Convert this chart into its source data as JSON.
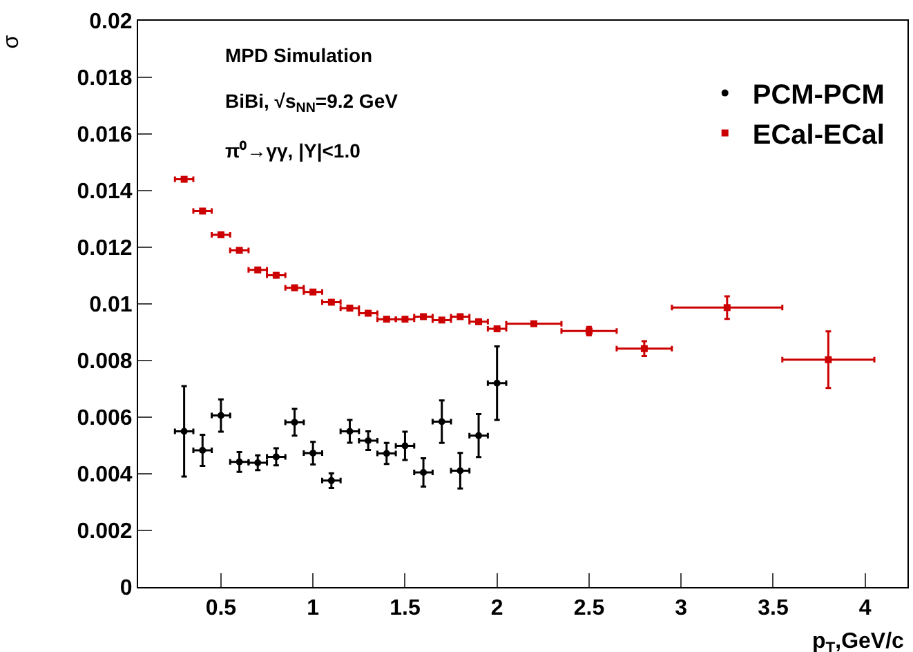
{
  "chart_data": {
    "type": "scatter",
    "xlabel": "p$_{T}$,GeV/c",
    "ylabel": "σ",
    "annotations": [
      "MPD Simulation",
      "BiBi, √s$_{NN}$=9.2 GeV",
      "π⁰→γγ, |Y|<1.0"
    ],
    "xlim": [
      0.05,
      4.23
    ],
    "xticks": [
      0.5,
      1,
      1.5,
      2,
      2.5,
      3,
      3.5,
      4
    ],
    "ylim": [
      0,
      0.02
    ],
    "yticks": [
      0,
      0.002,
      0.004,
      0.006,
      0.008,
      0.01,
      0.012,
      0.014,
      0.016,
      0.018,
      0.02
    ],
    "legend": "top right",
    "series": [
      {
        "name": "PCM-PCM",
        "color": "#000000",
        "marker": "circle",
        "x": [
          0.3,
          0.4,
          0.5,
          0.6,
          0.7,
          0.8,
          0.9,
          1.0,
          1.1,
          1.2,
          1.3,
          1.4,
          1.5,
          1.6,
          1.7,
          1.8,
          1.9,
          2.0
        ],
        "values": [
          0.0055,
          0.00483,
          0.00606,
          0.00442,
          0.00439,
          0.0046,
          0.00582,
          0.00473,
          0.00376,
          0.0055,
          0.00517,
          0.00472,
          0.00499,
          0.00405,
          0.00584,
          0.00411,
          0.00535,
          0.0072
        ],
        "errors": [
          0.0016,
          0.00055,
          0.00057,
          0.00035,
          0.00026,
          0.0003,
          0.00047,
          0.0004,
          0.00026,
          0.0004,
          0.00033,
          0.00037,
          0.0005,
          0.0005,
          0.00075,
          0.00063,
          0.00076,
          0.0013
        ],
        "xerrors": [
          0.05,
          0.05,
          0.05,
          0.05,
          0.05,
          0.05,
          0.05,
          0.05,
          0.05,
          0.05,
          0.05,
          0.05,
          0.05,
          0.05,
          0.05,
          0.05,
          0.05,
          0.05
        ]
      },
      {
        "name": "ECal-ECal",
        "color": "#cc0000",
        "marker": "square",
        "x": [
          0.3,
          0.4,
          0.5,
          0.6,
          0.7,
          0.8,
          0.9,
          1.0,
          1.1,
          1.2,
          1.3,
          1.4,
          1.5,
          1.6,
          1.7,
          1.8,
          1.9,
          2.0,
          2.2,
          2.5,
          2.8,
          3.25,
          3.8
        ],
        "values": [
          0.0144,
          0.01328,
          0.01244,
          0.01189,
          0.0112,
          0.01101,
          0.01057,
          0.01042,
          0.01006,
          0.00985,
          0.00967,
          0.00946,
          0.00946,
          0.00955,
          0.00943,
          0.00955,
          0.00937,
          0.00912,
          0.0093,
          0.00904,
          0.00842,
          0.00987,
          0.00803
        ],
        "errors": [
          null,
          null,
          null,
          null,
          null,
          null,
          null,
          null,
          null,
          null,
          null,
          null,
          null,
          null,
          null,
          null,
          null,
          null,
          null,
          0.00015,
          0.00026,
          0.0004,
          0.001
        ],
        "xerrors": [
          0.05,
          0.05,
          0.05,
          0.05,
          0.05,
          0.05,
          0.05,
          0.05,
          0.05,
          0.05,
          0.05,
          0.05,
          0.05,
          0.05,
          0.05,
          0.05,
          0.05,
          0.05,
          0.15,
          0.15,
          0.15,
          0.3,
          0.25
        ]
      }
    ]
  }
}
